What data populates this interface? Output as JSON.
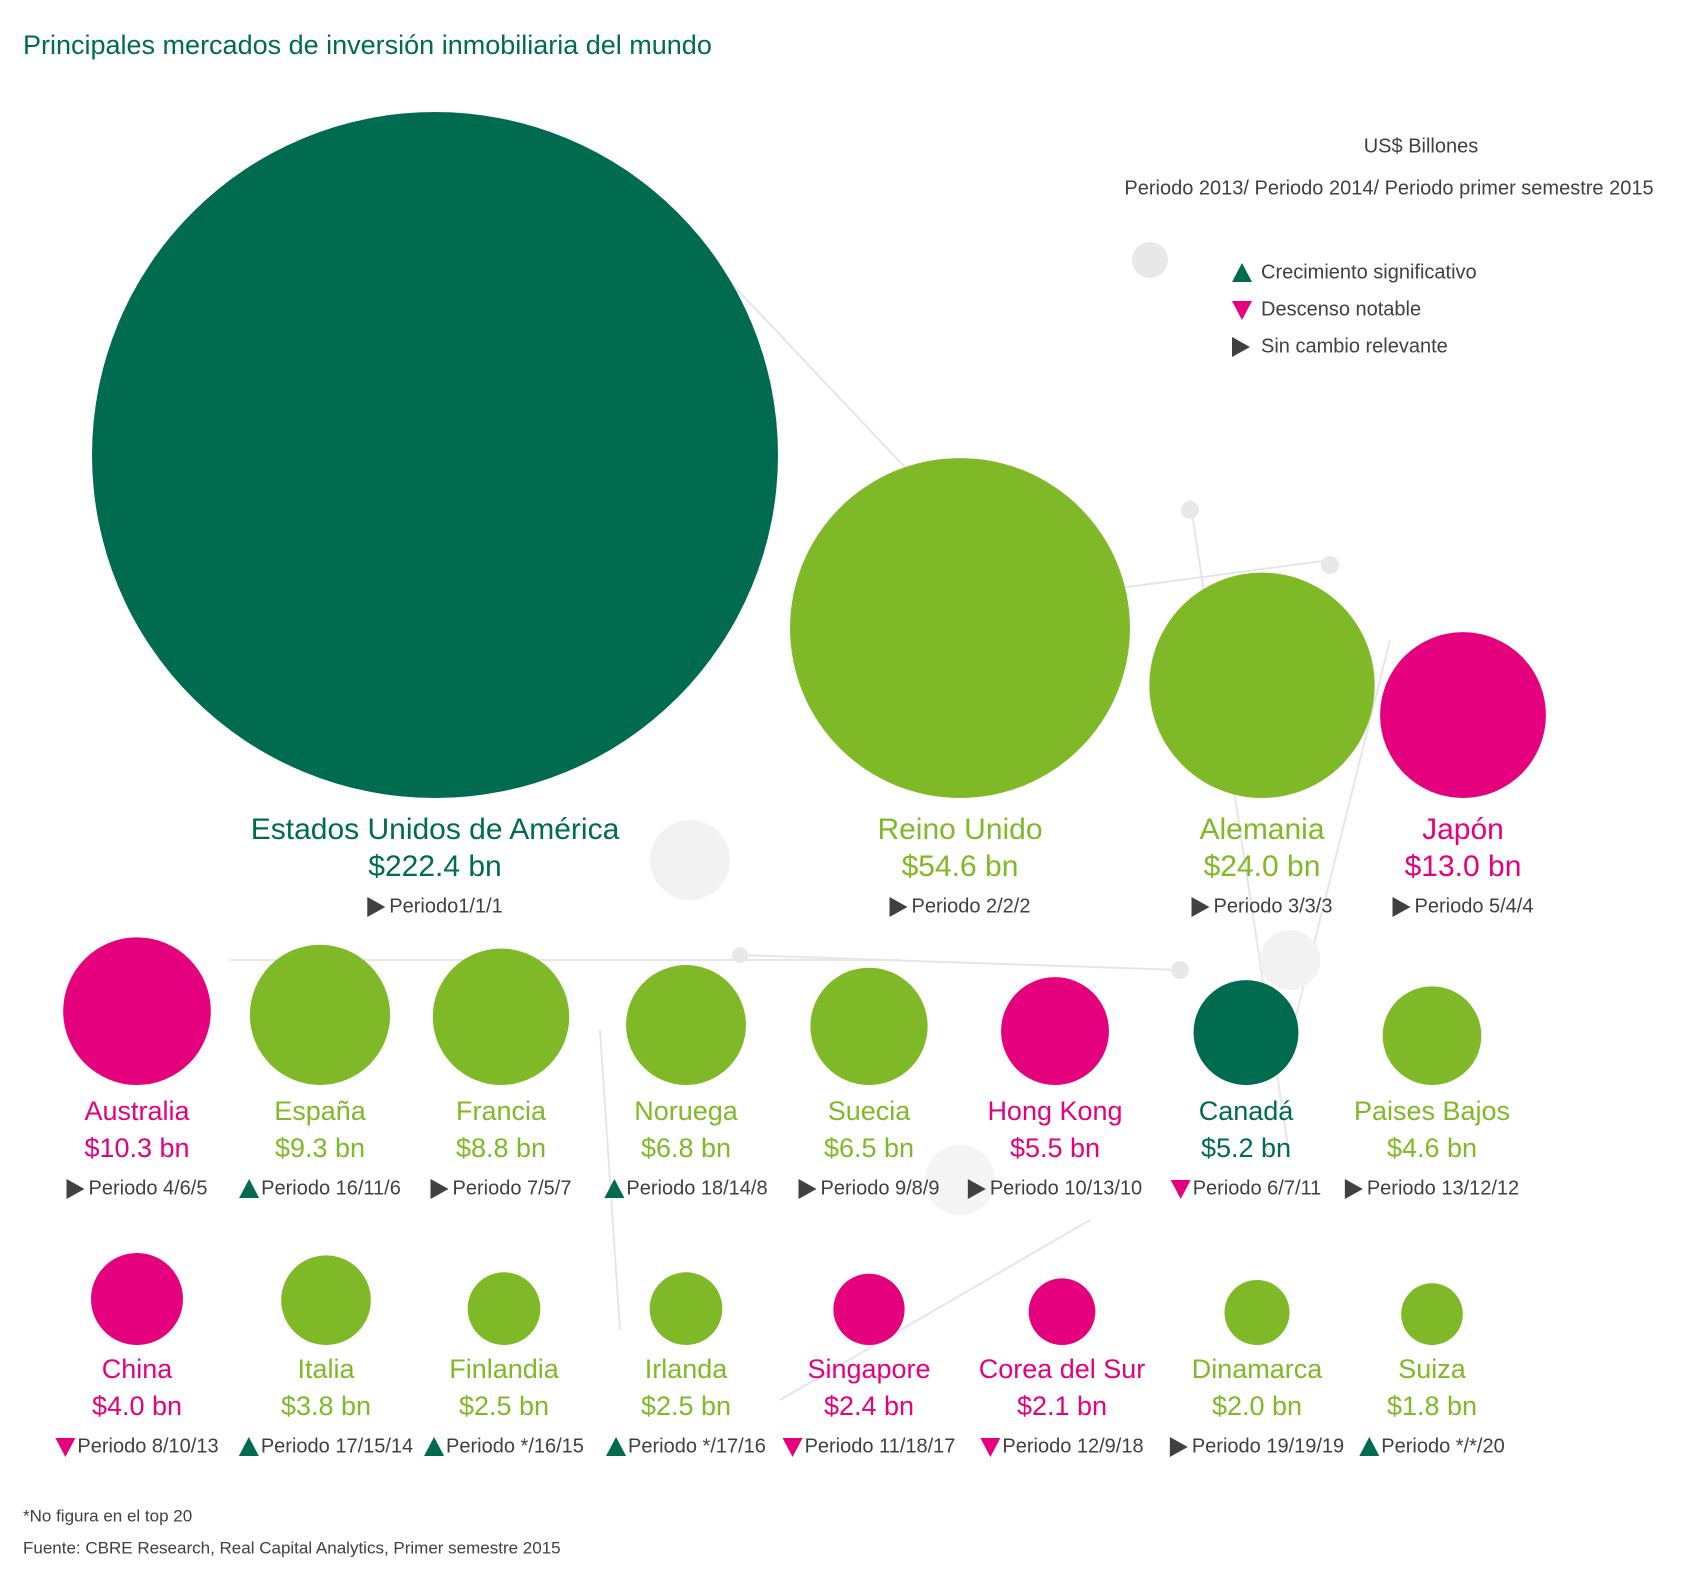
{
  "chart_data": {
    "type": "bubble",
    "title": "Principales mercados de inversión inmobiliaria del mundo",
    "unit_note": "US$ Billones",
    "period_note": "Periodo 2013/ Periodo  2014/ Periodo primer semestre 2015",
    "legend": [
      {
        "trend": "up",
        "label": "Crecimiento significativo"
      },
      {
        "trend": "down",
        "label": "Descenso notable"
      },
      {
        "trend": "flat",
        "label": "Sin cambio relevante"
      }
    ],
    "trend_colors": {
      "up": "#006b4f",
      "down": "#e5007e",
      "flat": "#404040"
    },
    "categories": [
      "Estados Unidos de América",
      "Reino Unido",
      "Alemania",
      "Japón",
      "Australia",
      "España",
      "Francia",
      "Noruega",
      "Suecia",
      "Hong Kong",
      "Canadá",
      "Paises Bajos",
      "China",
      "Italia",
      "Finlandia",
      "Irlanda",
      "Singapore",
      "Corea del Sur",
      "Dinamarca",
      "Suiza"
    ],
    "values": [
      222.4,
      54.6,
      24.0,
      13.0,
      10.3,
      9.3,
      8.8,
      6.8,
      6.5,
      5.5,
      5.2,
      4.6,
      4.0,
      3.8,
      2.5,
      2.5,
      2.4,
      2.1,
      2.0,
      1.8
    ],
    "value_labels": [
      "$222.4 bn",
      "$54.6 bn",
      "$24.0 bn",
      "$13.0 bn",
      "$10.3 bn",
      "$9.3 bn",
      "$8.8 bn",
      "$6.8 bn",
      "$6.5 bn",
      "$5.5 bn",
      "$5.2 bn",
      "$4.6 bn",
      "$4.0 bn",
      "$3.8 bn",
      "$2.5 bn",
      "$2.5 bn",
      "$2.4 bn",
      "$2.1 bn",
      "$2.0 bn",
      "$1.8 bn"
    ],
    "colors": [
      "#006b4f",
      "#80b927",
      "#80b927",
      "#e5007e",
      "#e5007e",
      "#80b927",
      "#80b927",
      "#80b927",
      "#80b927",
      "#e5007e",
      "#006b4f",
      "#80b927",
      "#e5007e",
      "#80b927",
      "#80b927",
      "#80b927",
      "#e5007e",
      "#e5007e",
      "#80b927",
      "#80b927"
    ],
    "period_labels": [
      "Periodo1/1/1",
      "Periodo 2/2/2",
      "Periodo 3/3/3",
      "Periodo 5/4/4",
      "Periodo 4/6/5",
      "Periodo 16/11/6",
      "Periodo 7/5/7",
      "Periodo 18/14/8",
      "Periodo 9/8/9",
      "Periodo 10/13/10",
      "Periodo 6/7/11",
      "Periodo 13/12/12",
      "Periodo 8/10/13",
      "Periodo 17/15/14",
      "Periodo */16/15",
      "Periodo */17/16",
      "Periodo 11/18/17",
      "Periodo 12/9/18",
      "Periodo 19/19/19",
      "Periodo */*/20"
    ],
    "trends": [
      "flat",
      "flat",
      "flat",
      "flat",
      "flat",
      "up",
      "flat",
      "up",
      "flat",
      "flat",
      "down",
      "flat",
      "down",
      "up",
      "up",
      "up",
      "down",
      "down",
      "flat",
      "up"
    ],
    "footnote": "*No figura en el top 20",
    "source": "Fuente: CBRE Research, Real Capital Analytics, Primer semestre 2015"
  }
}
